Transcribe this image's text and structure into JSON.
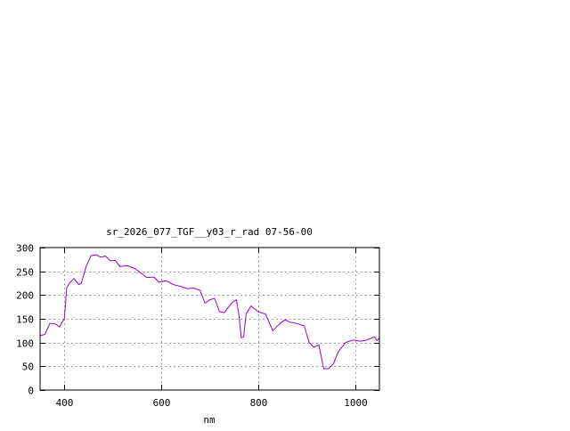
{
  "chart_data": {
    "type": "line",
    "title": "sr_2026_077_TGF__y03_r_rad 07-56-00",
    "xlabel": "nm",
    "ylabel": "",
    "xlim": [
      350,
      1050
    ],
    "ylim": [
      0,
      300
    ],
    "xticks": [
      400,
      600,
      800,
      1000
    ],
    "yticks": [
      0,
      50,
      100,
      150,
      200,
      250,
      300
    ],
    "grid": true,
    "color": "#9400d3",
    "series": [
      {
        "x": [
          350,
          360,
          370,
          380,
          390,
          400,
          405,
          410,
          420,
          430,
          435,
          445,
          455,
          465,
          475,
          485,
          495,
          505,
          515,
          530,
          545,
          560,
          570,
          585,
          595,
          610,
          625,
          640,
          655,
          665,
          680,
          690,
          700,
          710,
          720,
          730,
          745,
          755,
          760,
          765,
          770,
          775,
          785,
          800,
          815,
          830,
          845,
          855,
          865,
          880,
          895,
          905,
          915,
          925,
          935,
          945,
          955,
          965,
          980,
          995,
          1000,
          1010,
          1020,
          1030,
          1040,
          1045,
          1050
        ],
        "y": [
          115,
          117,
          140,
          140,
          133,
          150,
          215,
          225,
          235,
          222,
          225,
          260,
          283,
          285,
          280,
          282,
          272,
          273,
          260,
          262,
          256,
          245,
          237,
          238,
          227,
          230,
          222,
          218,
          213,
          215,
          210,
          183,
          190,
          193,
          165,
          163,
          183,
          190,
          160,
          110,
          112,
          160,
          177,
          165,
          160,
          125,
          140,
          148,
          143,
          140,
          135,
          100,
          90,
          95,
          45,
          45,
          55,
          80,
          100,
          105,
          105,
          103,
          104,
          108,
          112,
          104,
          110
        ]
      }
    ]
  }
}
